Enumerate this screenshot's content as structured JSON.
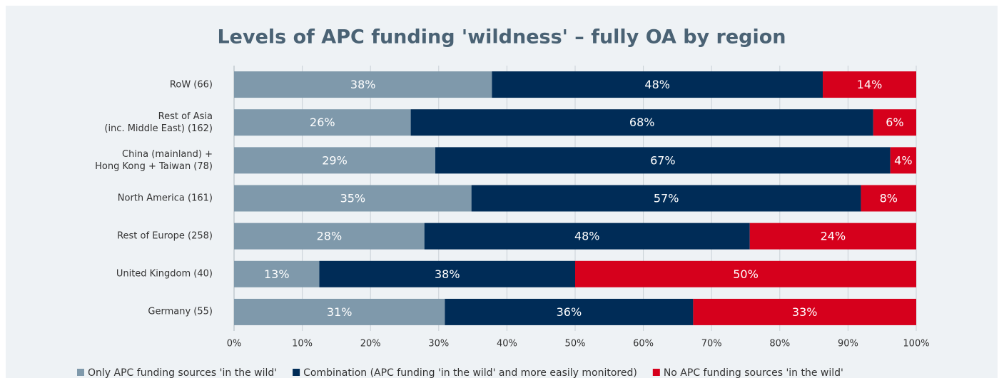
{
  "chart_data": {
    "type": "stacked_barh",
    "title": "Levels of APC funding 'wildness' – fully OA by region",
    "categories": [
      "RoW (66)",
      "Rest of Asia\n(inc. Middle East) (162)",
      "China (mainland) +\nHong Kong + Taiwan (78)",
      "North America (161)",
      "Rest of Europe (258)",
      "United Kingdom (40)",
      "Germany (55)"
    ],
    "series": [
      {
        "name": "Only APC funding sources 'in the wild'",
        "color": "#7f99ab",
        "values": [
          37.8,
          25.9,
          29.5,
          34.8,
          27.9,
          12.5,
          30.9
        ],
        "value_labels": [
          "38%",
          "26%",
          "29%",
          "35%",
          "28%",
          "13%",
          "31%"
        ]
      },
      {
        "name": "Combination (APC funding 'in the wild' and more easily monitored)",
        "color": "#002c57",
        "values": [
          48.5,
          67.8,
          66.7,
          57.1,
          47.7,
          37.5,
          36.4
        ],
        "value_labels": [
          "48%",
          "68%",
          "67%",
          "57%",
          "48%",
          "38%",
          "36%"
        ]
      },
      {
        "name": "No APC funding sources 'in the wild'",
        "color": "#d6001c",
        "values": [
          13.7,
          6.3,
          3.8,
          8.1,
          24.4,
          50,
          32.7
        ],
        "value_labels": [
          "14%",
          "6%",
          "4%",
          "8%",
          "24%",
          "50%",
          "33%"
        ]
      }
    ],
    "xlim": [
      0,
      100
    ],
    "xticks": [
      {
        "value": 0,
        "label": "0%"
      },
      {
        "value": 10,
        "label": "10%"
      },
      {
        "value": 20,
        "label": "20%"
      },
      {
        "value": 30,
        "label": "30%"
      },
      {
        "value": 40,
        "label": "40%"
      },
      {
        "value": 50,
        "label": "50%"
      },
      {
        "value": 60,
        "label": "60%"
      },
      {
        "value": 70,
        "label": "70%"
      },
      {
        "value": 80,
        "label": "80%"
      },
      {
        "value": 90,
        "label": "90%"
      },
      {
        "value": 100,
        "label": "100%"
      }
    ],
    "grid": true
  }
}
